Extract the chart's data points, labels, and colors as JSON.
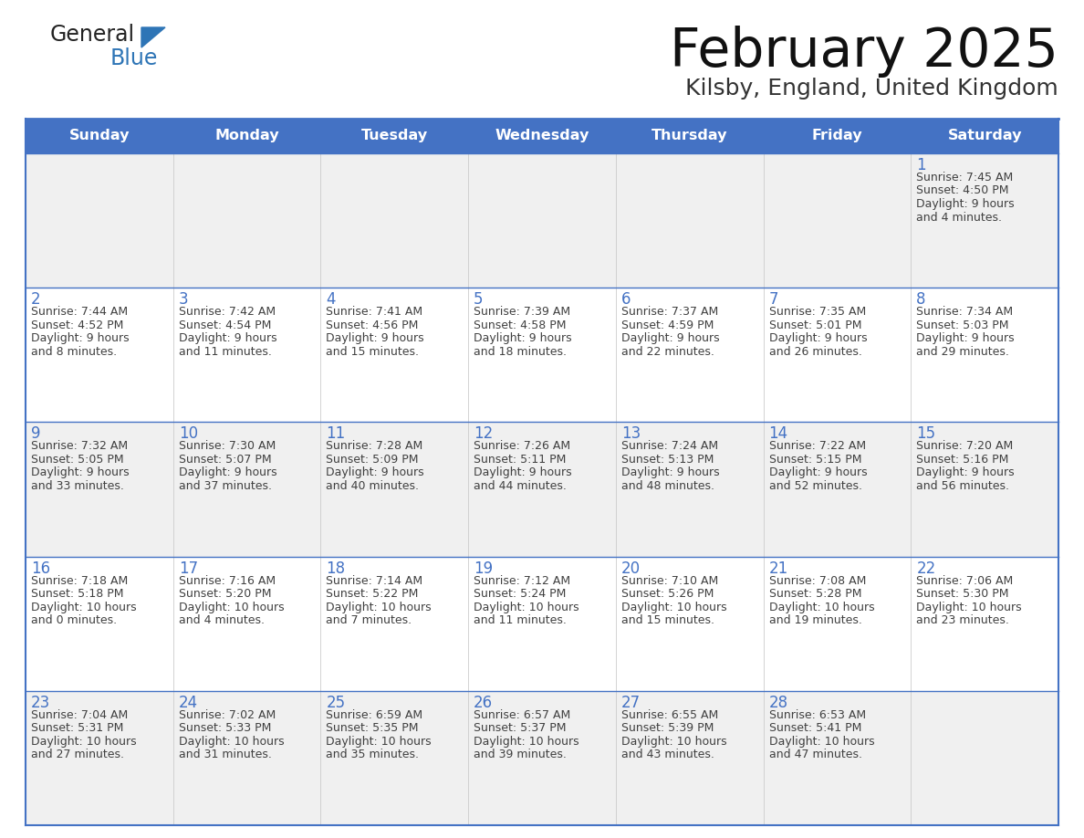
{
  "title": "February 2025",
  "subtitle": "Kilsby, England, United Kingdom",
  "days_of_week": [
    "Sunday",
    "Monday",
    "Tuesday",
    "Wednesday",
    "Thursday",
    "Friday",
    "Saturday"
  ],
  "header_bg": "#4472C4",
  "header_text": "#FFFFFF",
  "cell_bg_odd": "#F0F0F0",
  "cell_bg_even": "#FFFFFF",
  "border_color": "#4472C4",
  "day_number_color": "#4472C4",
  "text_color": "#404040",
  "logo_general_color": "#222222",
  "logo_blue_color": "#2E75B6",
  "calendar_data": [
    [
      null,
      null,
      null,
      null,
      null,
      null,
      1
    ],
    [
      2,
      3,
      4,
      5,
      6,
      7,
      8
    ],
    [
      9,
      10,
      11,
      12,
      13,
      14,
      15
    ],
    [
      16,
      17,
      18,
      19,
      20,
      21,
      22
    ],
    [
      23,
      24,
      25,
      26,
      27,
      28,
      null
    ]
  ],
  "cell_data": {
    "1": {
      "sunrise": "7:45 AM",
      "sunset": "4:50 PM",
      "daylight": "9 hours and 4 minutes."
    },
    "2": {
      "sunrise": "7:44 AM",
      "sunset": "4:52 PM",
      "daylight": "9 hours and 8 minutes."
    },
    "3": {
      "sunrise": "7:42 AM",
      "sunset": "4:54 PM",
      "daylight": "9 hours and 11 minutes."
    },
    "4": {
      "sunrise": "7:41 AM",
      "sunset": "4:56 PM",
      "daylight": "9 hours and 15 minutes."
    },
    "5": {
      "sunrise": "7:39 AM",
      "sunset": "4:58 PM",
      "daylight": "9 hours and 18 minutes."
    },
    "6": {
      "sunrise": "7:37 AM",
      "sunset": "4:59 PM",
      "daylight": "9 hours and 22 minutes."
    },
    "7": {
      "sunrise": "7:35 AM",
      "sunset": "5:01 PM",
      "daylight": "9 hours and 26 minutes."
    },
    "8": {
      "sunrise": "7:34 AM",
      "sunset": "5:03 PM",
      "daylight": "9 hours and 29 minutes."
    },
    "9": {
      "sunrise": "7:32 AM",
      "sunset": "5:05 PM",
      "daylight": "9 hours and 33 minutes."
    },
    "10": {
      "sunrise": "7:30 AM",
      "sunset": "5:07 PM",
      "daylight": "9 hours and 37 minutes."
    },
    "11": {
      "sunrise": "7:28 AM",
      "sunset": "5:09 PM",
      "daylight": "9 hours and 40 minutes."
    },
    "12": {
      "sunrise": "7:26 AM",
      "sunset": "5:11 PM",
      "daylight": "9 hours and 44 minutes."
    },
    "13": {
      "sunrise": "7:24 AM",
      "sunset": "5:13 PM",
      "daylight": "9 hours and 48 minutes."
    },
    "14": {
      "sunrise": "7:22 AM",
      "sunset": "5:15 PM",
      "daylight": "9 hours and 52 minutes."
    },
    "15": {
      "sunrise": "7:20 AM",
      "sunset": "5:16 PM",
      "daylight": "9 hours and 56 minutes."
    },
    "16": {
      "sunrise": "7:18 AM",
      "sunset": "5:18 PM",
      "daylight": "10 hours and 0 minutes."
    },
    "17": {
      "sunrise": "7:16 AM",
      "sunset": "5:20 PM",
      "daylight": "10 hours and 4 minutes."
    },
    "18": {
      "sunrise": "7:14 AM",
      "sunset": "5:22 PM",
      "daylight": "10 hours and 7 minutes."
    },
    "19": {
      "sunrise": "7:12 AM",
      "sunset": "5:24 PM",
      "daylight": "10 hours and 11 minutes."
    },
    "20": {
      "sunrise": "7:10 AM",
      "sunset": "5:26 PM",
      "daylight": "10 hours and 15 minutes."
    },
    "21": {
      "sunrise": "7:08 AM",
      "sunset": "5:28 PM",
      "daylight": "10 hours and 19 minutes."
    },
    "22": {
      "sunrise": "7:06 AM",
      "sunset": "5:30 PM",
      "daylight": "10 hours and 23 minutes."
    },
    "23": {
      "sunrise": "7:04 AM",
      "sunset": "5:31 PM",
      "daylight": "10 hours and 27 minutes."
    },
    "24": {
      "sunrise": "7:02 AM",
      "sunset": "5:33 PM",
      "daylight": "10 hours and 31 minutes."
    },
    "25": {
      "sunrise": "6:59 AM",
      "sunset": "5:35 PM",
      "daylight": "10 hours and 35 minutes."
    },
    "26": {
      "sunrise": "6:57 AM",
      "sunset": "5:37 PM",
      "daylight": "10 hours and 39 minutes."
    },
    "27": {
      "sunrise": "6:55 AM",
      "sunset": "5:39 PM",
      "daylight": "10 hours and 43 minutes."
    },
    "28": {
      "sunrise": "6:53 AM",
      "sunset": "5:41 PM",
      "daylight": "10 hours and 47 minutes."
    }
  }
}
